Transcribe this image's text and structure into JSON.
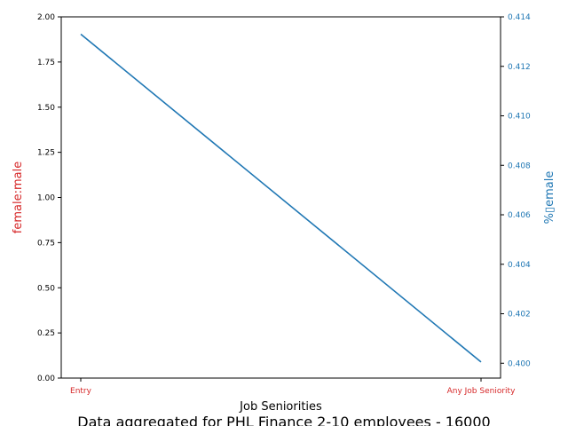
{
  "chart_data": {
    "type": "line",
    "title": "",
    "caption": "Data aggregated for PHL Finance 2-10 employees - 16000",
    "xlabel": "Job Seniorities",
    "categories": [
      "Entry",
      "Any Job Seniority"
    ],
    "left_axis": {
      "label": "female:male",
      "ylim": [
        0,
        2.0
      ],
      "ticks": [
        "0.00",
        "0.25",
        "0.50",
        "0.75",
        "1.00",
        "1.25",
        "1.50",
        "1.75",
        "2.00"
      ],
      "color": "#d62728"
    },
    "right_axis": {
      "label": "%▯emale",
      "ylim": [
        0.3994,
        0.414
      ],
      "ticks": [
        "0.400",
        "0.402",
        "0.404",
        "0.406",
        "0.408",
        "0.410",
        "0.412",
        "0.414"
      ],
      "color": "#1f77b4"
    },
    "series": [
      {
        "name": "% female",
        "axis": "right",
        "color": "#1f77b4",
        "values": [
          0.4133,
          0.40005
        ]
      }
    ],
    "grid": false,
    "legend": "none"
  }
}
